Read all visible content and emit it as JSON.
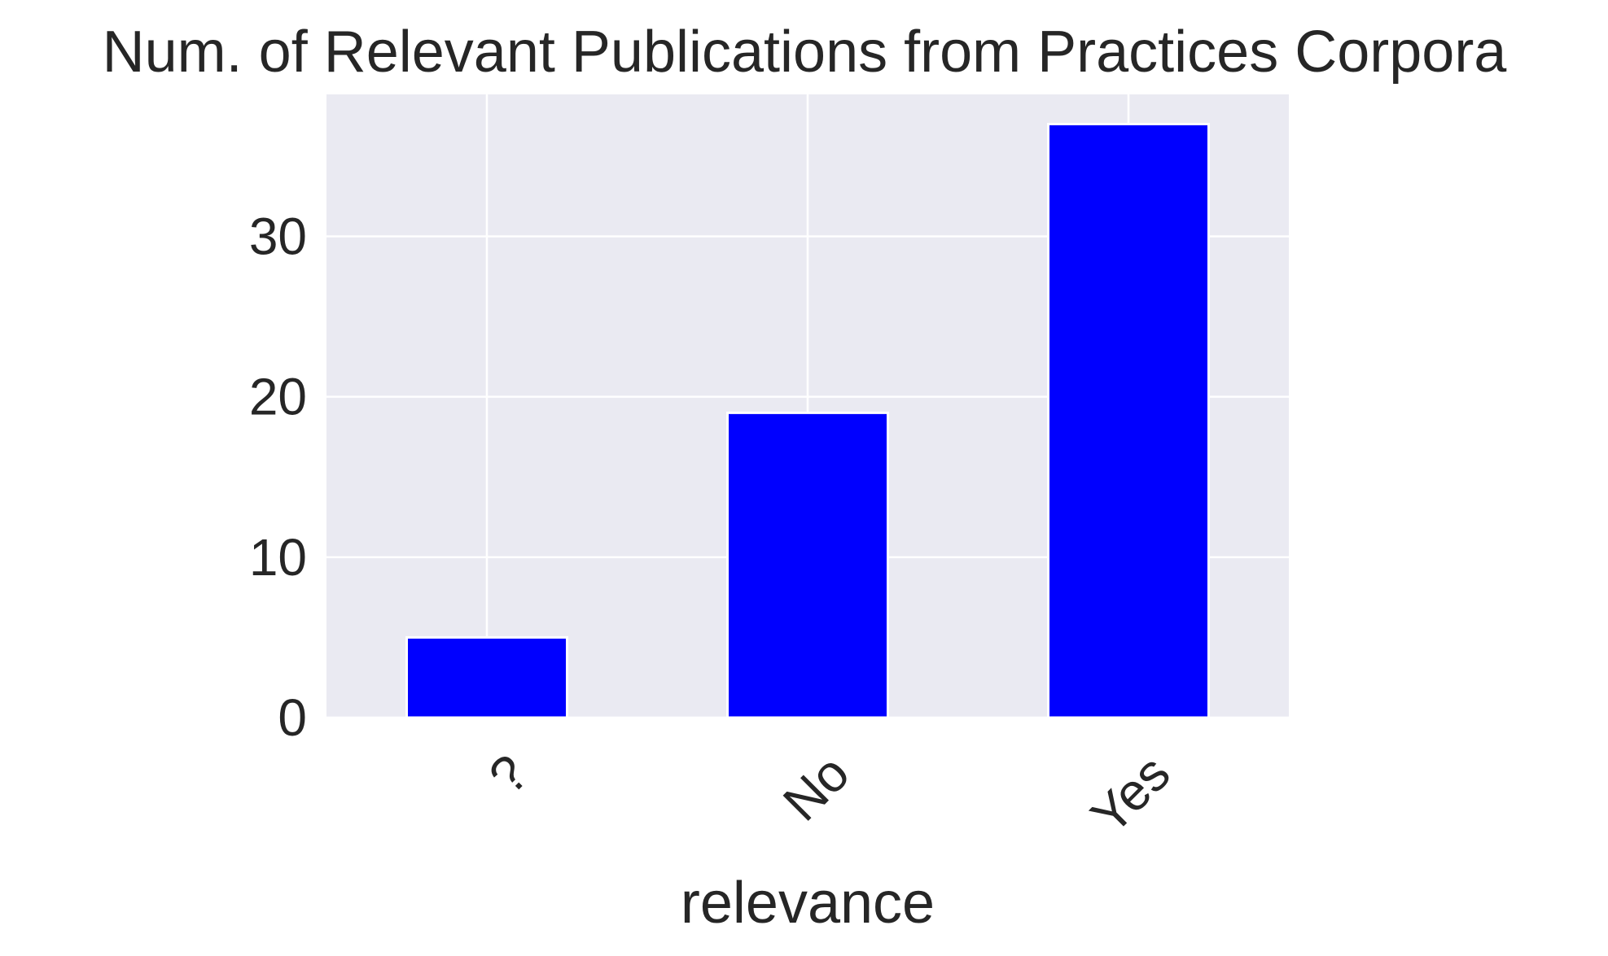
{
  "chart_data": {
    "type": "bar",
    "title": "Num. of Relevant Publications from Practices Corpora",
    "xlabel": "relevance",
    "ylabel": "",
    "categories": [
      "?",
      "No",
      "Yes"
    ],
    "values": [
      5,
      19,
      37
    ],
    "ylim": [
      0,
      38.85
    ],
    "yticks": [
      0,
      10,
      20,
      30
    ],
    "ytick_labels": [
      "0",
      "10",
      "20",
      "30"
    ],
    "xtick_rotation": "45 degrees",
    "grid": true,
    "legend": "none",
    "colors": {
      "bar": "#0000ff",
      "plot_background": "#eaeaf2",
      "grid": "#ffffff",
      "text": "#262626"
    }
  }
}
